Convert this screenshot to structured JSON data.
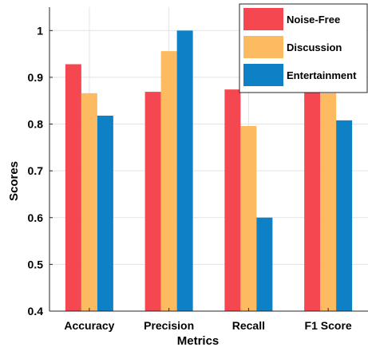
{
  "chart_data": {
    "type": "bar",
    "title": "",
    "xlabel": "Metrics",
    "ylabel": "Scores",
    "categories": [
      "Accuracy",
      "Precision",
      "Recall",
      "F1 Score"
    ],
    "ylim": [
      0.4,
      1.05
    ],
    "yticks": [
      0.4,
      0.5,
      0.6,
      0.7,
      0.8,
      0.9,
      1
    ],
    "ytick_labels": [
      "0.4",
      "0.5",
      "0.6",
      "0.7",
      "0.8",
      "0.9",
      "1"
    ],
    "grid": true,
    "legend_position": "top-right",
    "series": [
      {
        "name": "Noise-Free",
        "color": "#f4474f",
        "values": [
          0.928,
          0.869,
          0.874,
          0.871
        ]
      },
      {
        "name": "Discussion",
        "color": "#fdbb61",
        "values": [
          0.866,
          0.956,
          0.796,
          0.866
        ]
      },
      {
        "name": "Entertainment",
        "color": "#0e80c6",
        "values": [
          0.818,
          1.0,
          0.6,
          0.808
        ]
      }
    ]
  }
}
